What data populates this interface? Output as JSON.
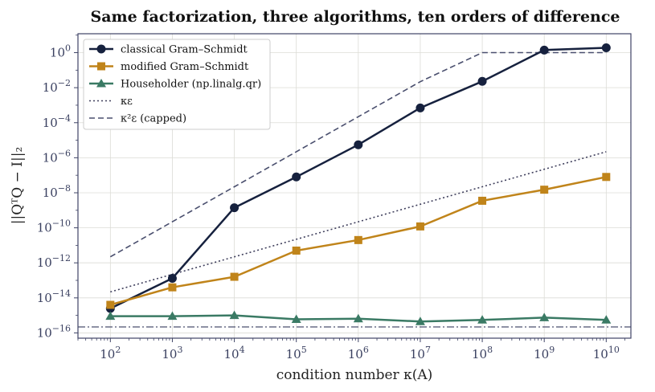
{
  "chart_data": {
    "type": "line",
    "title": "Same factorization, three algorithms, ten orders of difference",
    "xlabel": "condition number κ(A)",
    "ylabel": "||QᵀQ − I||₂",
    "xscale": "log",
    "yscale": "log",
    "xlim": [
      30.0,
      25000000000.0
    ],
    "ylim": [
      5e-17,
      12.0
    ],
    "x": [
      100.0,
      1000.0,
      10000.0,
      100000.0,
      1000000.0,
      10000000.0,
      100000000.0,
      1000000000.0,
      10000000000.0
    ],
    "xticks": [
      {
        "base": "10",
        "exp": "2",
        "value": 100.0
      },
      {
        "base": "10",
        "exp": "3",
        "value": 1000.0
      },
      {
        "base": "10",
        "exp": "4",
        "value": 10000.0
      },
      {
        "base": "10",
        "exp": "5",
        "value": 100000.0
      },
      {
        "base": "10",
        "exp": "6",
        "value": 1000000.0
      },
      {
        "base": "10",
        "exp": "7",
        "value": 10000000.0
      },
      {
        "base": "10",
        "exp": "8",
        "value": 100000000.0
      },
      {
        "base": "10",
        "exp": "9",
        "value": 1000000000.0
      },
      {
        "base": "10",
        "exp": "10",
        "value": 10000000000.0
      }
    ],
    "yticks": [
      {
        "base": "10",
        "exp": "−16",
        "value": 1e-16
      },
      {
        "base": "10",
        "exp": "−14",
        "value": 1e-14
      },
      {
        "base": "10",
        "exp": "−12",
        "value": 1e-12
      },
      {
        "base": "10",
        "exp": "−10",
        "value": 1e-10
      },
      {
        "base": "10",
        "exp": "−8",
        "value": 1e-08
      },
      {
        "base": "10",
        "exp": "−6",
        "value": 1e-06
      },
      {
        "base": "10",
        "exp": "−4",
        "value": 0.0001
      },
      {
        "base": "10",
        "exp": "−2",
        "value": 0.01
      },
      {
        "base": "10",
        "exp": "0",
        "value": 1
      }
    ],
    "grid": true,
    "legend_position": "top-left",
    "series": [
      {
        "name": "classical Gram–Schmidt",
        "color": "#16213e",
        "marker": "circle",
        "line": "solid",
        "values": [
          2.5e-15,
          1.3e-13,
          1.4e-09,
          8e-08,
          5.5e-06,
          0.0007,
          0.023,
          1.4,
          1.9
        ]
      },
      {
        "name": "modified Gram–Schmidt",
        "color": "#c0841a",
        "marker": "square",
        "line": "solid",
        "values": [
          4e-15,
          4e-14,
          1.6e-13,
          5e-12,
          2e-11,
          1.2e-10,
          3.5e-09,
          1.5e-08,
          8e-08
        ]
      },
      {
        "name": "Householder (np.linalg.qr)",
        "color": "#3a7a64",
        "marker": "triangle",
        "line": "solid",
        "values": [
          9e-16,
          9e-16,
          1e-15,
          6e-16,
          6.5e-16,
          4.5e-16,
          5.5e-16,
          7.5e-16,
          5.5e-16
        ]
      },
      {
        "name": "κε",
        "color": "#3f3f5c",
        "marker": "none",
        "line": "dotted",
        "values": [
          2.2e-14,
          2.2e-13,
          2.2e-12,
          2.2e-11,
          2.2e-10,
          2.2e-09,
          2.2e-08,
          2.2e-07,
          2.2e-06
        ]
      },
      {
        "name": "κ²ε (capped)",
        "color": "#4a4f6e",
        "marker": "none",
        "line": "dashed",
        "values": [
          2.2e-12,
          2.2e-10,
          2.2e-08,
          2.2e-06,
          0.00022,
          0.022,
          1,
          1,
          1
        ]
      }
    ],
    "reference_line": {
      "y": 2.2e-16,
      "color": "#4a4f6e",
      "line": "dashdot"
    }
  }
}
